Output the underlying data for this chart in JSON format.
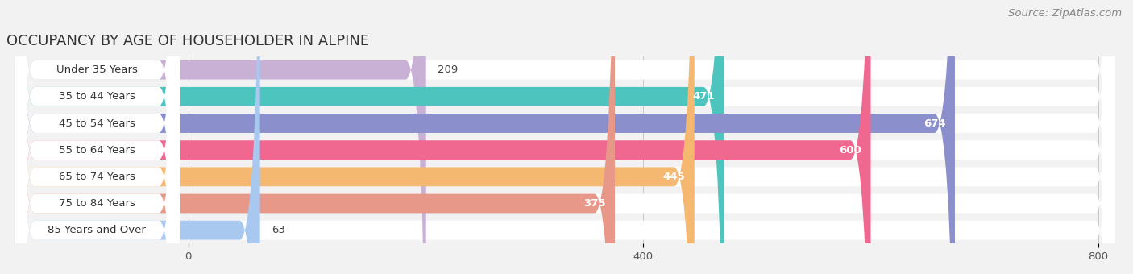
{
  "title": "OCCUPANCY BY AGE OF HOUSEHOLDER IN ALPINE",
  "source": "Source: ZipAtlas.com",
  "categories": [
    "Under 35 Years",
    "35 to 44 Years",
    "45 to 54 Years",
    "55 to 64 Years",
    "65 to 74 Years",
    "75 to 84 Years",
    "85 Years and Over"
  ],
  "values": [
    209,
    471,
    674,
    600,
    445,
    375,
    63
  ],
  "bar_colors": [
    "#c9b0d5",
    "#4ec4be",
    "#8b8fcc",
    "#f06890",
    "#f5b870",
    "#e89888",
    "#a8c8f0"
  ],
  "xlim_data": [
    0,
    800
  ],
  "xticks": [
    0,
    400,
    800
  ],
  "bar_height": 0.72,
  "bg_color": "#f2f2f2",
  "title_fontsize": 13,
  "source_fontsize": 9.5,
  "label_fontsize": 9.5,
  "category_fontsize": 9.5,
  "tick_fontsize": 9.5,
  "inside_threshold": 300
}
